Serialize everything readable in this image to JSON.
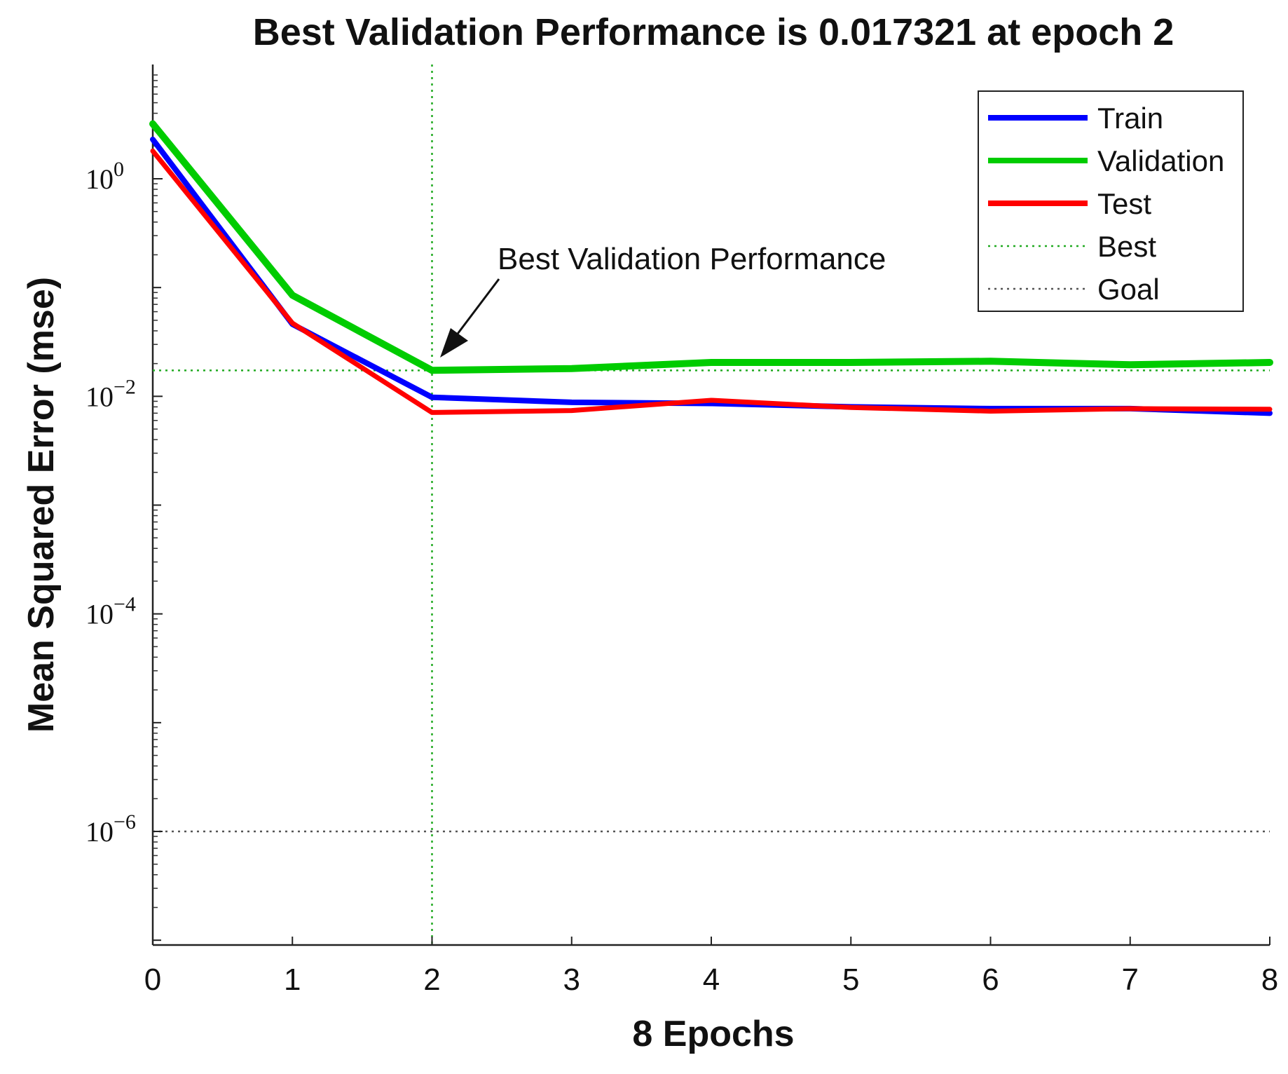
{
  "chart_data": {
    "type": "line",
    "title": "Best Validation Performance is 0.017321 at epoch 2",
    "xlabel": "8 Epochs",
    "ylabel": "Mean Squared Error  (mse)",
    "yscale": "log",
    "xlim": [
      0,
      8
    ],
    "ylim": [
      1e-07,
      10
    ],
    "x": [
      0,
      1,
      2,
      3,
      4,
      5,
      6,
      7,
      8
    ],
    "x_ticks": [
      "0",
      "1",
      "2",
      "3",
      "4",
      "5",
      "6",
      "7",
      "8"
    ],
    "y_ticks": [
      {
        "value": 1,
        "base": "10",
        "exp": "0"
      },
      {
        "value": 0.01,
        "base": "10",
        "exp": "−2"
      },
      {
        "value": 0.0001,
        "base": "10",
        "exp": "−4"
      },
      {
        "value": 1e-06,
        "base": "10",
        "exp": "−6"
      }
    ],
    "series": [
      {
        "name": "Train",
        "color": "#0000ff",
        "style": "solid",
        "values": [
          2.3,
          0.046,
          0.0098,
          0.0088,
          0.0086,
          0.008,
          0.0077,
          0.0077,
          0.007
        ]
      },
      {
        "name": "Validation",
        "color": "#00cc00",
        "style": "solid",
        "values": [
          3.2,
          0.085,
          0.017321,
          0.018,
          0.0205,
          0.0205,
          0.021,
          0.0195,
          0.0205
        ]
      },
      {
        "name": "Test",
        "color": "#ff0000",
        "style": "solid",
        "values": [
          1.8,
          0.047,
          0.0071,
          0.0074,
          0.0092,
          0.0079,
          0.0073,
          0.0077,
          0.0076
        ]
      }
    ],
    "reference_lines": [
      {
        "name": "Best",
        "color": "#22aa22",
        "style": "dotted",
        "x": 2,
        "y": 0.017321
      },
      {
        "name": "Goal",
        "color": "#555555",
        "style": "dotted",
        "y": 1e-06
      }
    ],
    "legend": [
      "Train",
      "Validation",
      "Test",
      "Best",
      "Goal"
    ],
    "legend_position": "top-right",
    "annotation": {
      "text": "Best Validation Performance",
      "x": 2,
      "y": 0.017321
    }
  }
}
